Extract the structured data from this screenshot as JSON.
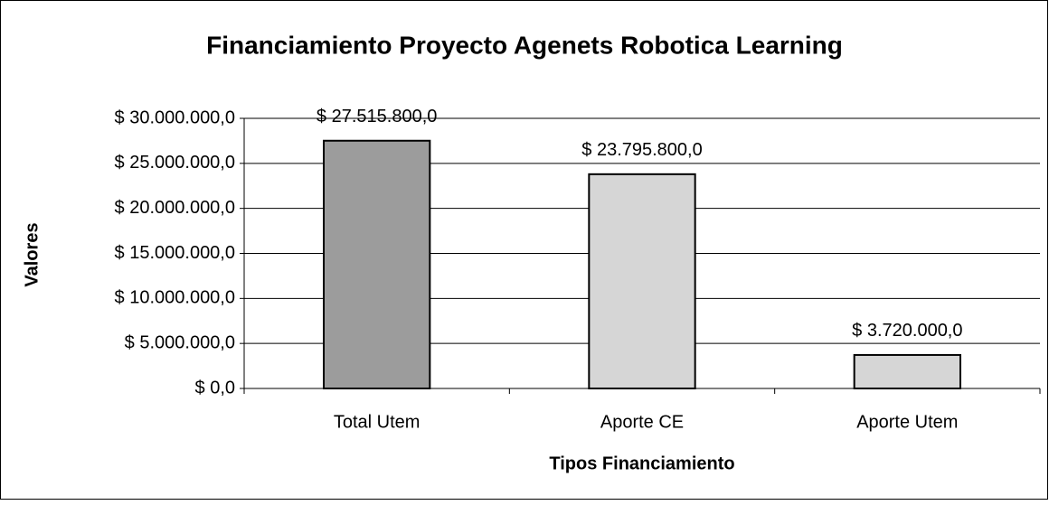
{
  "chart_data": {
    "type": "bar",
    "title": "Financiamiento Proyecto Agenets Robotica Learning",
    "x_label": "Tipos Financiamiento",
    "y_label": "Valores",
    "categories": [
      "Total Utem",
      "Aporte CE",
      "Aporte Utem"
    ],
    "values": [
      27515800,
      23795800,
      3720000
    ],
    "value_labels": [
      "$ 27.515.800,0",
      "$ 23.795.800,0",
      "$ 3.720.000,0"
    ],
    "colors": [
      "#9c9c9c",
      "#d6d6d6",
      "#d6d6d6"
    ],
    "ylim": [
      0,
      30000000
    ],
    "yticks": [
      {
        "value": 0,
        "label": "$ 0,0"
      },
      {
        "value": 5000000,
        "label": "$ 5.000.000,0"
      },
      {
        "value": 10000000,
        "label": "$ 10.000.000,0"
      },
      {
        "value": 15000000,
        "label": "$ 15.000.000,0"
      },
      {
        "value": 20000000,
        "label": "$ 20.000.000,0"
      },
      {
        "value": 25000000,
        "label": "$ 25.000.000,0"
      },
      {
        "value": 30000000,
        "label": "$ 30.000.000,0"
      }
    ],
    "grid": true
  }
}
